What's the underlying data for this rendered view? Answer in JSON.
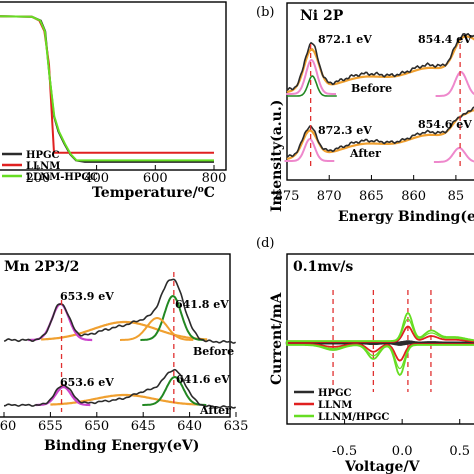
{
  "chart_data": [
    {
      "id": "tga",
      "type": "line",
      "panel_label": "",
      "xlabel": "Temperature/°C",
      "xlabel_parts": [
        "Temperature/",
        "o",
        "C"
      ],
      "xticks": [
        "200",
        "400",
        "600",
        "800"
      ],
      "xlim": [
        30,
        800
      ],
      "ylim": [
        0,
        100
      ],
      "legend_position": "bottom-right",
      "series": [
        {
          "name": "HPGC",
          "color": "#2b2b2b",
          "x": [
            30,
            180,
            210,
            225,
            240,
            255,
            270,
            290,
            310,
            330,
            360,
            800
          ],
          "y": [
            100,
            99.5,
            97,
            90,
            60,
            34,
            24,
            16,
            9,
            5,
            4,
            4
          ]
        },
        {
          "name": "LLNM",
          "color": "#e02020",
          "x": [
            30,
            180,
            205,
            222,
            238,
            255,
            800
          ],
          "y": [
            100,
            99.5,
            97,
            90,
            68,
            10,
            10
          ]
        },
        {
          "name": "LLNM-HPGC",
          "color": "#66dd22",
          "x": [
            30,
            180,
            208,
            224,
            240,
            256,
            272,
            292,
            312,
            332,
            360,
            800
          ],
          "y": [
            100,
            99.5,
            97,
            90,
            60,
            34,
            24,
            16,
            9,
            5,
            5,
            5
          ]
        }
      ]
    },
    {
      "id": "ni2p",
      "type": "line",
      "panel_label": "(b)",
      "title": "Ni 2P",
      "xlabel": "Energy Binding(eV)",
      "ylabel": "Intensity(a.u.)",
      "xticks": [
        "875",
        "870",
        "865",
        "860",
        "85"
      ],
      "xlim": [
        875,
        852.5
      ],
      "x_reversed": true,
      "annotations": [
        "872.1 eV",
        "854.4 eV",
        "872.3 eV",
        "854.6 eV",
        "Before",
        "After"
      ],
      "peaks_before_eV": [
        872.1,
        854.4
      ],
      "peaks_after_eV": [
        872.3,
        854.6
      ]
    },
    {
      "id": "mn2p32",
      "type": "line",
      "panel_label": "",
      "title": "Mn 2P3/2",
      "xlabel": "Binding Energy(eV)",
      "xticks": [
        "60",
        "655",
        "650",
        "645",
        "640",
        "635"
      ],
      "xlim": [
        660,
        635
      ],
      "x_reversed": true,
      "annotations": [
        "653.9 eV",
        "641.8 eV",
        "653.6 eV",
        "641.6 eV",
        "Before",
        "After"
      ],
      "peaks_before_eV": [
        653.9,
        641.8
      ],
      "peaks_after_eV": [
        653.6,
        641.6
      ]
    },
    {
      "id": "cv",
      "type": "line",
      "panel_label": "(d)",
      "title": "0.1mv/s",
      "xlabel": "Voltage/V",
      "ylabel": "Current/mA",
      "xticks": [
        "-0.5",
        "0.0",
        "0.5"
      ],
      "xlim": [
        -1.0,
        0.65
      ],
      "legend_position": "bottom-left",
      "series": [
        {
          "name": "HPGC",
          "color": "#2b2b2b"
        },
        {
          "name": "LLNM",
          "color": "#e02020"
        },
        {
          "name": "LLNM/HPGC",
          "color": "#66dd22"
        }
      ]
    }
  ],
  "colors": {
    "black": "#2b2b2b",
    "red": "#e02020",
    "green": "#66dd22",
    "orange": "#f0a030",
    "purple": "#cc44cc",
    "pink": "#ee88cc",
    "dkgreen": "#228822",
    "dashed": "#e03030"
  }
}
